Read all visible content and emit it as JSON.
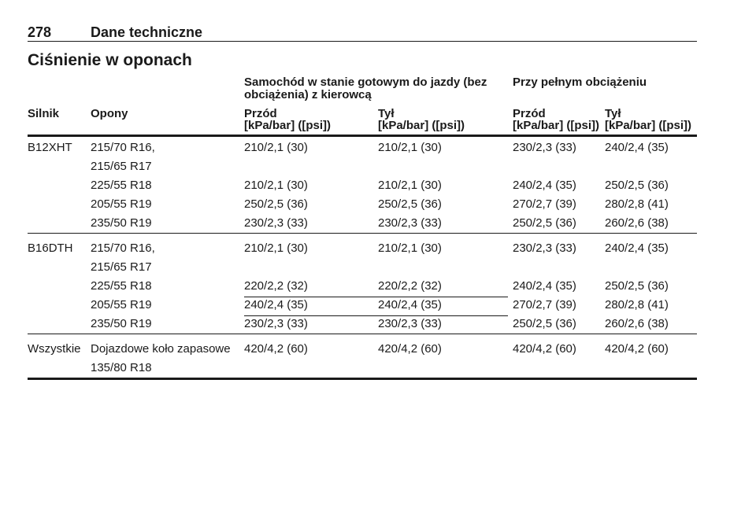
{
  "header": {
    "page_number": "278",
    "section": "Dane techniczne"
  },
  "title": "Ciśnienie w oponach",
  "table": {
    "group_headers": [
      "Samochód w stanie gotowym do jazdy (bez obciążenia) z kierowcą",
      "Przy pełnym obciążeniu"
    ],
    "columns": [
      "Silnik",
      "Opony",
      "Przód",
      "Tył",
      "Przód",
      "Tył"
    ],
    "units": [
      "[kPa/bar] ([psi])",
      "[kPa/bar] ([psi])",
      "[kPa/bar] ([psi])",
      "[kPa/bar] ([psi])"
    ],
    "groups": [
      {
        "engine": "B12XHT",
        "rows": [
          {
            "tyres": [
              "215/70 R16,",
              "215/65 R17"
            ],
            "values": [
              "210/2,1 (30)",
              "210/2,1 (30)",
              "230/2,3 (33)",
              "240/2,4 (35)"
            ]
          },
          {
            "tyres": [
              "225/55 R18"
            ],
            "values": [
              "210/2,1 (30)",
              "210/2,1 (30)",
              "240/2,4 (35)",
              "250/2,5 (36)"
            ]
          },
          {
            "tyres": [
              "205/55 R19"
            ],
            "values": [
              "250/2,5 (36)",
              "250/2,5 (36)",
              "270/2,7 (39)",
              "280/2,8 (41)"
            ]
          },
          {
            "tyres": [
              "235/50 R19"
            ],
            "values": [
              "230/2,3 (33)",
              "230/2,3 (33)",
              "250/2,5 (36)",
              "260/2,6 (38)"
            ]
          }
        ]
      },
      {
        "engine": "B16DTH",
        "rows": [
          {
            "tyres": [
              "215/70 R16,",
              "215/65 R17"
            ],
            "values": [
              "210/2,1 (30)",
              "210/2,1 (30)",
              "230/2,3 (33)",
              "240/2,4 (35)"
            ]
          },
          {
            "tyres": [
              "225/55 R18"
            ],
            "values": [
              "220/2,2 (32)",
              "220/2,2 (32)",
              "240/2,4 (35)",
              "250/2,5 (36)"
            ]
          },
          {
            "tyres": [
              "205/55 R19"
            ],
            "values": [
              "240/2,4 (35)",
              "240/2,4 (35)",
              "270/2,7 (39)",
              "280/2,8 (41)"
            ]
          },
          {
            "tyres": [
              "235/50 R19"
            ],
            "values": [
              "230/2,3 (33)",
              "230/2,3 (33)",
              "250/2,5 (36)",
              "260/2,6 (38)"
            ]
          }
        ]
      },
      {
        "engine": "Wszystkie",
        "rows": [
          {
            "tyres": [
              "Dojazdowe koło zapasowe",
              "135/80 R18"
            ],
            "values": [
              "420/4,2 (60)",
              "420/4,2 (60)",
              "420/4,2 (60)",
              "420/4,2 (60)"
            ]
          }
        ]
      }
    ]
  }
}
